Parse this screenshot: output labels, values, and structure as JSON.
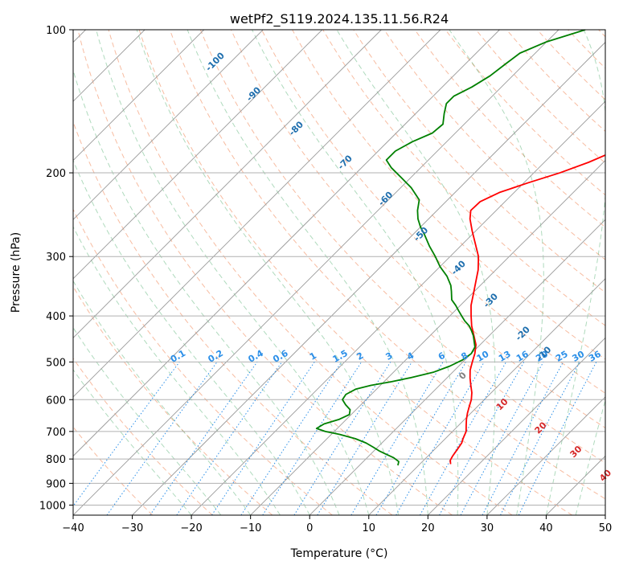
{
  "chart_data": {
    "type": "line",
    "title": "wetPf2_S119.2024.135.11.56.R24",
    "xlabel": "Temperature (°C)",
    "ylabel": "Pressure (hPa)",
    "xlim": [
      -40,
      50
    ],
    "ylim": [
      1050,
      100
    ],
    "y_scale": "log",
    "grid": true,
    "x_ticks": [
      -40,
      -30,
      -20,
      -10,
      0,
      10,
      20,
      30,
      40,
      50
    ],
    "y_ticks": [
      100,
      200,
      300,
      400,
      500,
      600,
      700,
      800,
      900,
      1000
    ],
    "isotherm_temps": [
      -180,
      -170,
      -160,
      -150,
      -140,
      -130,
      -120,
      -110,
      -100,
      -90,
      -80,
      -70,
      -60,
      -50,
      -40,
      -30,
      -20,
      -10,
      0,
      10,
      20,
      30,
      40,
      50
    ],
    "dry_adiabats_theta_c": [
      -30,
      -20,
      -10,
      0,
      10,
      20,
      30,
      40,
      50,
      60,
      70,
      80,
      90,
      100,
      110,
      120,
      130,
      140,
      150,
      160,
      170,
      180,
      190,
      200
    ],
    "moist_adiabats_start_c": [
      -20,
      -15,
      -10,
      -5,
      0,
      5,
      10,
      15,
      20,
      25,
      30,
      35,
      40,
      45,
      50
    ],
    "mixing_ratio_labels": [
      "0.1",
      "0.2",
      "0.4",
      "0.6",
      "1",
      "1.5",
      "2",
      "3",
      "4",
      "6",
      "8",
      "10",
      "13",
      "16",
      "20",
      "25",
      "30",
      "36"
    ],
    "mixing_ratio_values": [
      0.1,
      0.2,
      0.4,
      0.6,
      1,
      1.5,
      2,
      3,
      4,
      6,
      8,
      10,
      13,
      16,
      20,
      25,
      30,
      36
    ],
    "dry_adiabat_labels": [
      {
        "text": "-100",
        "p": 118,
        "t": -92
      },
      {
        "text": "-90",
        "p": 138,
        "t": -80
      },
      {
        "text": "-80",
        "p": 163,
        "t": -67
      },
      {
        "text": "-70",
        "p": 192,
        "t": -53
      },
      {
        "text": "-60",
        "p": 229,
        "t": -40
      },
      {
        "text": "-50",
        "p": 272,
        "t": -28
      },
      {
        "text": "-40",
        "p": 320,
        "t": -16
      },
      {
        "text": "-30",
        "p": 375,
        "t": -5
      },
      {
        "text": "-20",
        "p": 440,
        "t": 6
      },
      {
        "text": "-10",
        "p": 485,
        "t": 13
      }
    ],
    "moist_adiabat_labels": [
      {
        "text": "0",
        "p": 540,
        "t": 3
      },
      {
        "text": "10",
        "p": 620,
        "t": 14.5
      },
      {
        "text": "20",
        "p": 695,
        "t": 25
      },
      {
        "text": "30",
        "p": 780,
        "t": 35
      },
      {
        "text": "40",
        "p": 875,
        "t": 44
      }
    ],
    "series": [
      {
        "name": "Temperature",
        "color": "#ff0000",
        "points": [
          [
            820,
            15.2
          ],
          [
            805,
            14.5
          ],
          [
            790,
            14.2
          ],
          [
            775,
            14.0
          ],
          [
            760,
            13.8
          ],
          [
            740,
            13.5
          ],
          [
            725,
            13.0
          ],
          [
            700,
            12.3
          ],
          [
            680,
            11.3
          ],
          [
            660,
            10.3
          ],
          [
            640,
            9.4
          ],
          [
            620,
            8.6
          ],
          [
            600,
            7.8
          ],
          [
            580,
            6.7
          ],
          [
            560,
            5.3
          ],
          [
            540,
            3.9
          ],
          [
            520,
            2.6
          ],
          [
            500,
            1.6
          ],
          [
            480,
            0.6
          ],
          [
            460,
            -0.7
          ],
          [
            440,
            -2.6
          ],
          [
            420,
            -4.6
          ],
          [
            400,
            -6.4
          ],
          [
            380,
            -8.2
          ],
          [
            360,
            -9.7
          ],
          [
            340,
            -11.3
          ],
          [
            320,
            -13.0
          ],
          [
            300,
            -15.2
          ],
          [
            280,
            -18.2
          ],
          [
            265,
            -20.6
          ],
          [
            250,
            -23.0
          ],
          [
            240,
            -24.3
          ],
          [
            230,
            -24.2
          ],
          [
            220,
            -22.5
          ],
          [
            210,
            -19.3
          ],
          [
            200,
            -15.6
          ],
          [
            190,
            -12.5
          ],
          [
            180,
            -10.0
          ],
          [
            170,
            -8.0
          ],
          [
            160,
            -6.9
          ],
          [
            150,
            -6.0
          ],
          [
            142,
            -5.0
          ],
          [
            135,
            -4.3
          ],
          [
            127,
            -3.2
          ],
          [
            120,
            -1.6
          ],
          [
            112,
            0.5
          ],
          [
            106,
            1.4
          ],
          [
            100,
            1.5
          ]
        ]
      },
      {
        "name": "Dewpoint",
        "color": "#008000",
        "points": [
          [
            825,
            6.5
          ],
          [
            810,
            6.0
          ],
          [
            795,
            4.5
          ],
          [
            780,
            2.4
          ],
          [
            770,
            1.0
          ],
          [
            755,
            -0.8
          ],
          [
            740,
            -2.7
          ],
          [
            725,
            -5.2
          ],
          [
            710,
            -8.6
          ],
          [
            700,
            -11.5
          ],
          [
            690,
            -13.5
          ],
          [
            675,
            -13.0
          ],
          [
            660,
            -11.2
          ],
          [
            645,
            -10.3
          ],
          [
            630,
            -11.0
          ],
          [
            615,
            -12.6
          ],
          [
            600,
            -14.0
          ],
          [
            585,
            -14.3
          ],
          [
            570,
            -13.5
          ],
          [
            560,
            -11.6
          ],
          [
            550,
            -8.7
          ],
          [
            540,
            -6.3
          ],
          [
            525,
            -3.2
          ],
          [
            510,
            -1.5
          ],
          [
            495,
            -0.4
          ],
          [
            480,
            0.0
          ],
          [
            465,
            -0.5
          ],
          [
            450,
            -1.8
          ],
          [
            440,
            -2.7
          ],
          [
            430,
            -3.8
          ],
          [
            420,
            -5.0
          ],
          [
            410,
            -6.6
          ],
          [
            400,
            -8.0
          ],
          [
            390,
            -9.4
          ],
          [
            380,
            -10.8
          ],
          [
            370,
            -12.4
          ],
          [
            355,
            -13.9
          ],
          [
            345,
            -15.0
          ],
          [
            330,
            -17.2
          ],
          [
            315,
            -20.0
          ],
          [
            300,
            -22.5
          ],
          [
            285,
            -25.3
          ],
          [
            270,
            -28.0
          ],
          [
            260,
            -30.0
          ],
          [
            250,
            -31.8
          ],
          [
            240,
            -33.3
          ],
          [
            228,
            -34.8
          ],
          [
            215,
            -38.2
          ],
          [
            205,
            -41.5
          ],
          [
            195,
            -45.0
          ],
          [
            188,
            -47.1
          ],
          [
            180,
            -47.1
          ],
          [
            172,
            -45.8
          ],
          [
            165,
            -43.9
          ],
          [
            158,
            -43.6
          ],
          [
            150,
            -45.2
          ],
          [
            143,
            -46.5
          ],
          [
            138,
            -46.5
          ],
          [
            132,
            -45.0
          ],
          [
            125,
            -43.8
          ],
          [
            118,
            -43.2
          ],
          [
            112,
            -42.6
          ],
          [
            106,
            -40.0
          ],
          [
            100,
            -35.5
          ]
        ]
      }
    ]
  }
}
